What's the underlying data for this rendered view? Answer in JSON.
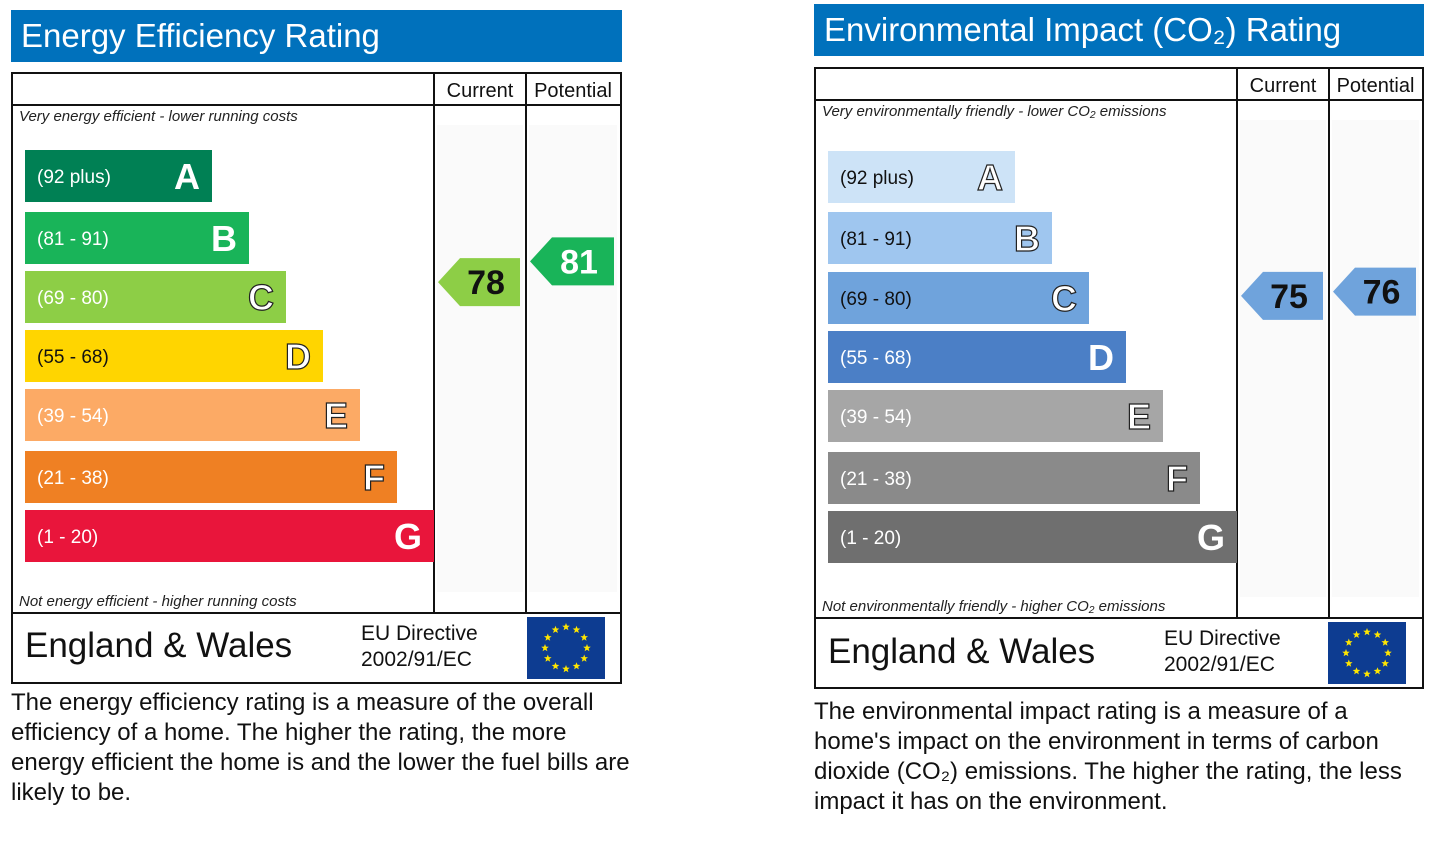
{
  "chart_data": [
    {
      "type": "bar",
      "title": "Energy Efficiency Rating",
      "columns": [
        "Current",
        "Potential"
      ],
      "top_note": "Very energy efficient - lower running costs",
      "bottom_note": "Not energy efficient - higher running costs",
      "categories": [
        "A",
        "B",
        "C",
        "D",
        "E",
        "F",
        "G"
      ],
      "ranges": [
        "(92 plus)",
        "(81 - 91)",
        "(69 - 80)",
        "(55 - 68)",
        "(39 - 54)",
        "(21 - 38)",
        "(1 - 20)"
      ],
      "colors": [
        "#008054",
        "#19b459",
        "#8dce46",
        "#ffd500",
        "#fcaa65",
        "#ef8023",
        "#e9153b"
      ],
      "band_values": [
        92,
        81,
        69,
        55,
        39,
        21,
        1
      ],
      "current": {
        "value": 78,
        "band": "C",
        "color": "#8dce46"
      },
      "potential": {
        "value": 81,
        "band": "B",
        "color": "#19b459"
      }
    },
    {
      "type": "bar",
      "title": "Environmental Impact (CO₂) Rating",
      "columns": [
        "Current",
        "Potential"
      ],
      "top_note": "Very environmentally friendly - lower CO₂ emissions",
      "bottom_note": "Not environmentally friendly - higher CO₂ emissions",
      "categories": [
        "A",
        "B",
        "C",
        "D",
        "E",
        "F",
        "G"
      ],
      "ranges": [
        "(92 plus)",
        "(81 - 91)",
        "(69 - 80)",
        "(55 - 68)",
        "(39 - 54)",
        "(21 - 38)",
        "(1 - 20)"
      ],
      "colors": [
        "#cde3f7",
        "#9fc6ef",
        "#6fa3dc",
        "#4b7fc6",
        "#a6a6a6",
        "#8a8a8a",
        "#6f6f6f"
      ],
      "band_values": [
        92,
        81,
        69,
        55,
        39,
        21,
        1
      ],
      "current": {
        "value": 75,
        "band": "C",
        "color": "#6fa3dc"
      },
      "potential": {
        "value": 76,
        "band": "C",
        "color": "#6fa3dc"
      }
    }
  ],
  "footer": {
    "region": "England & Wales",
    "directive_line1": "EU Directive",
    "directive_line2": "2002/91/EC",
    "flag_icon": "eu-flag-icon"
  },
  "descriptions": {
    "energy": "The energy efficiency rating is a measure of the overall efficiency of a home. The higher the rating, the more energy efficient the home is and the lower the fuel bills are likely to be.",
    "environmental": "The environmental impact rating is a measure of a home's impact on the environment in terms of carbon dioxide (CO₂) emissions. The higher the rating, the less impact it has on the environment."
  }
}
